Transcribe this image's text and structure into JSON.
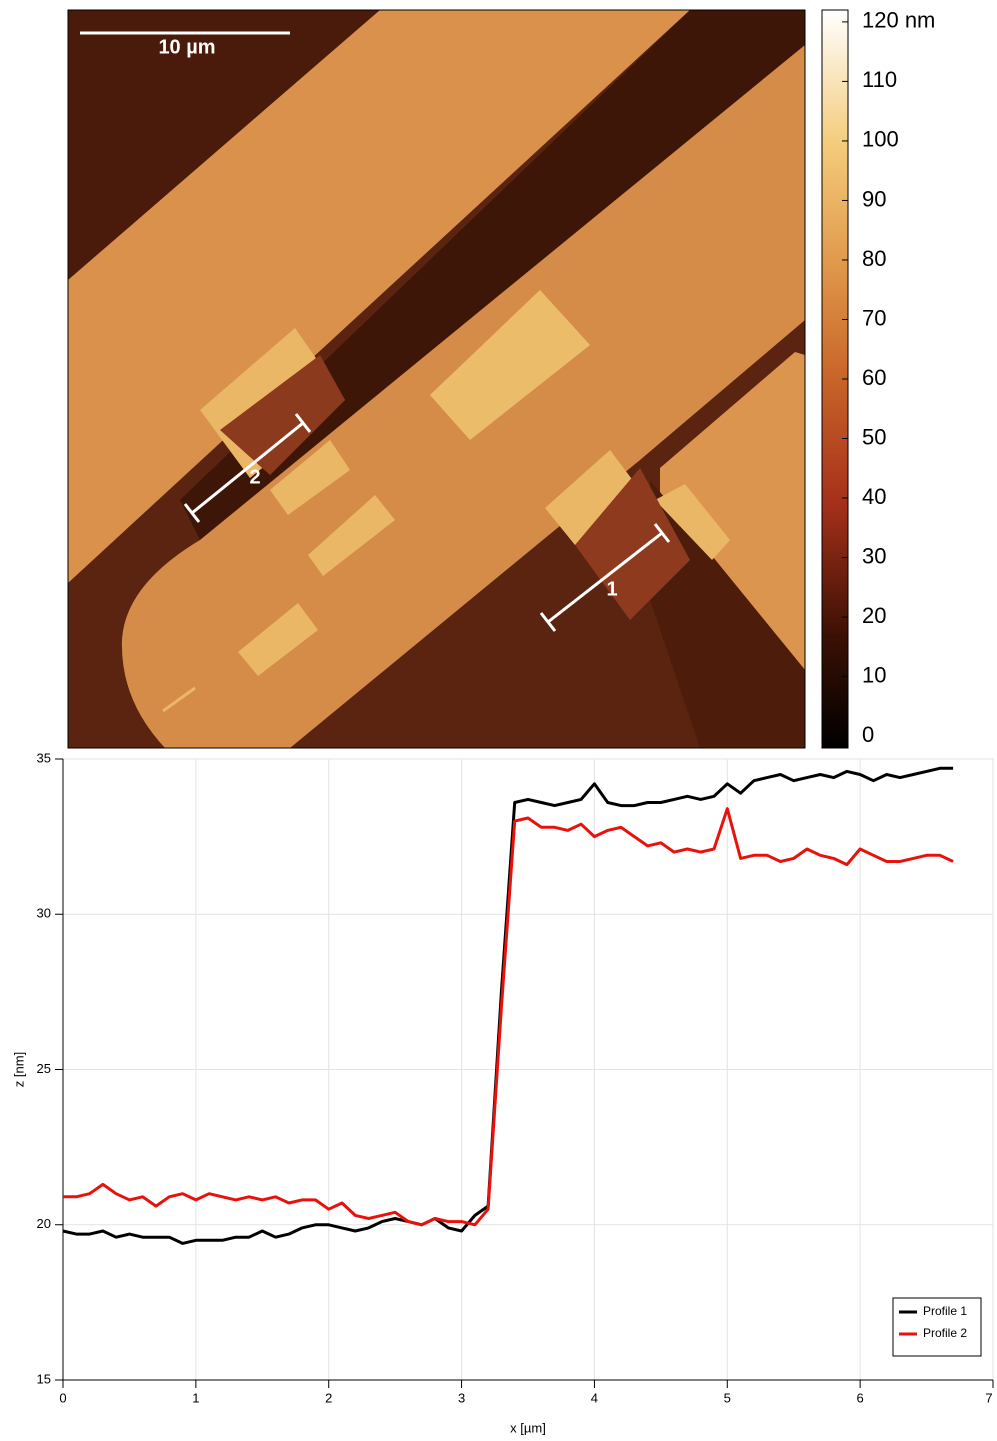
{
  "afm_image": {
    "scale_bar": "10 µm",
    "profile_labels": [
      "1",
      "2"
    ]
  },
  "colorbar": {
    "lim": [
      -2,
      122
    ],
    "ticks": [
      0,
      10,
      20,
      30,
      40,
      50,
      60,
      70,
      80,
      90,
      100,
      110,
      {
        "value": 120,
        "label": "120 nm"
      }
    ]
  },
  "chart_data": {
    "type": "line",
    "xlabel": "x [µm]",
    "ylabel": "z [nm]",
    "x": [
      0,
      0.1,
      0.2,
      0.3,
      0.4,
      0.5,
      0.6,
      0.7,
      0.8,
      0.9,
      1,
      1.1,
      1.2,
      1.3,
      1.4,
      1.5,
      1.6,
      1.7,
      1.8,
      1.9,
      2,
      2.1,
      2.2,
      2.3,
      2.4,
      2.5,
      2.6,
      2.7,
      2.8,
      2.9,
      3,
      3.1,
      3.2,
      3.3,
      3.4,
      3.5,
      3.6,
      3.7,
      3.8,
      3.9,
      4,
      4.1,
      4.2,
      4.3,
      4.4,
      4.5,
      4.6,
      4.7,
      4.8,
      4.9,
      5,
      5.1,
      5.2,
      5.3,
      5.4,
      5.5,
      5.6,
      5.7,
      5.8,
      5.9,
      6,
      6.1,
      6.2,
      6.3,
      6.4,
      6.5,
      6.6,
      6.7
    ],
    "series": [
      {
        "name": "Profile 1",
        "color": "#000000",
        "values": [
          19.8,
          19.7,
          19.7,
          19.8,
          19.6,
          19.7,
          19.6,
          19.6,
          19.6,
          19.4,
          19.5,
          19.5,
          19.5,
          19.6,
          19.6,
          19.8,
          19.6,
          19.7,
          19.9,
          20.0,
          20.0,
          19.9,
          19.8,
          19.9,
          20.1,
          20.2,
          20.1,
          20.0,
          20.2,
          19.9,
          19.8,
          20.3,
          20.6,
          27.5,
          33.6,
          33.7,
          33.6,
          33.5,
          33.6,
          33.7,
          34.2,
          33.6,
          33.5,
          33.5,
          33.6,
          33.6,
          33.7,
          33.8,
          33.7,
          33.8,
          34.2,
          33.9,
          34.3,
          34.4,
          34.5,
          34.3,
          34.4,
          34.5,
          34.4,
          34.6,
          34.5,
          34.3,
          34.5,
          34.4,
          34.5,
          34.6,
          34.7,
          34.7
        ]
      },
      {
        "name": "Profile 2",
        "color": "#e8120c",
        "values": [
          20.9,
          20.9,
          21.0,
          21.3,
          21.0,
          20.8,
          20.9,
          20.6,
          20.9,
          21.0,
          20.8,
          21.0,
          20.9,
          20.8,
          20.9,
          20.8,
          20.9,
          20.7,
          20.8,
          20.8,
          20.5,
          20.7,
          20.3,
          20.2,
          20.3,
          20.4,
          20.1,
          20.0,
          20.2,
          20.1,
          20.1,
          20.0,
          20.5,
          27.0,
          33.0,
          33.1,
          32.8,
          32.8,
          32.7,
          32.9,
          32.5,
          32.7,
          32.8,
          32.5,
          32.2,
          32.3,
          32.0,
          32.1,
          32.0,
          32.1,
          33.4,
          31.8,
          31.9,
          31.9,
          31.7,
          31.8,
          32.1,
          31.9,
          31.8,
          31.6,
          32.1,
          31.9,
          31.7,
          31.7,
          31.8,
          31.9,
          31.9,
          31.7
        ]
      }
    ],
    "xlim": [
      0,
      7
    ],
    "ylim": [
      15,
      35
    ],
    "xticks": [
      0,
      1,
      2,
      3,
      4,
      5,
      6,
      7
    ],
    "yticks": [
      15,
      20,
      25,
      30,
      35
    ],
    "grid": true,
    "legend": "lower right"
  }
}
